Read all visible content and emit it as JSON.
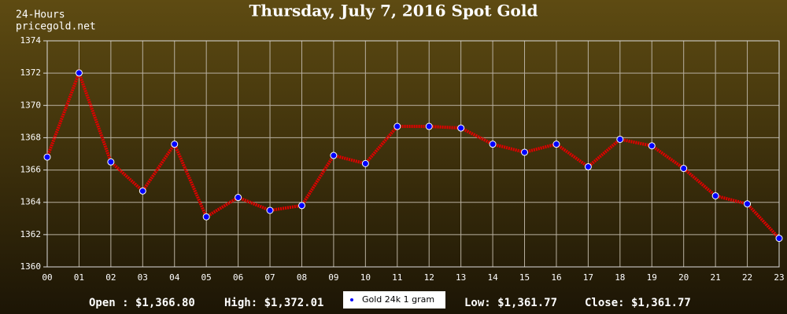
{
  "chart_data": {
    "type": "line",
    "title": "Thursday, July 7, 2016 Spot Gold",
    "corner_label": "24-Hours",
    "source": "pricegold.net",
    "categories": [
      "00",
      "01",
      "02",
      "03",
      "04",
      "05",
      "06",
      "07",
      "08",
      "09",
      "10",
      "11",
      "12",
      "13",
      "14",
      "15",
      "16",
      "17",
      "18",
      "19",
      "20",
      "21",
      "22",
      "23"
    ],
    "series": [
      {
        "name": "Gold 24k 1 gram",
        "color": "#e00000",
        "marker_color": "#0000ff",
        "values": [
          1366.8,
          1372.01,
          1366.5,
          1364.7,
          1367.6,
          1363.1,
          1364.3,
          1363.5,
          1363.8,
          1366.9,
          1366.4,
          1368.7,
          1368.7,
          1368.6,
          1367.6,
          1367.1,
          1367.6,
          1366.2,
          1367.9,
          1367.5,
          1366.1,
          1364.4,
          1363.9,
          1361.77
        ]
      }
    ],
    "ylim": [
      1360,
      1374
    ],
    "yticks": [
      1360,
      1362,
      1364,
      1366,
      1368,
      1370,
      1372,
      1374
    ],
    "grid": true,
    "stats": {
      "open": "Open : $1,366.80",
      "high": "High: $1,372.01",
      "low": "Low: $1,361.77",
      "close": "Close: $1,361.77"
    }
  }
}
